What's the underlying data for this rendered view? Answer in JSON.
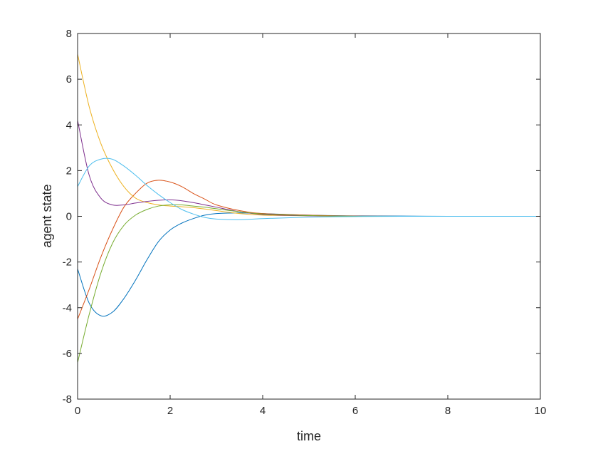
{
  "chart_data": {
    "type": "line",
    "title": "",
    "xlabel": "time",
    "ylabel": "agent state",
    "xlim": [
      0,
      10
    ],
    "ylim": [
      -8,
      8
    ],
    "xticks": [
      0,
      2,
      4,
      6,
      8,
      10
    ],
    "yticks": [
      -8,
      -6,
      -4,
      -2,
      0,
      2,
      4,
      6,
      8
    ],
    "xtick_labels": [
      "0",
      "2",
      "4",
      "6",
      "8",
      "10"
    ],
    "ytick_labels": [
      "-8",
      "-6",
      "-4",
      "-2",
      "0",
      "2",
      "4",
      "6",
      "8"
    ],
    "grid": false,
    "legend": "none",
    "x": [
      0,
      0.25,
      0.5,
      0.75,
      1,
      1.25,
      1.5,
      1.75,
      2,
      2.25,
      2.5,
      2.75,
      3,
      3.5,
      4,
      5,
      6,
      7,
      8,
      9,
      10
    ],
    "series": [
      {
        "color": "#0072BD",
        "values": [
          -2.3,
          -3.8,
          -4.35,
          -4.2,
          -3.6,
          -2.8,
          -1.9,
          -1.1,
          -0.6,
          -0.3,
          -0.1,
          0.05,
          0.12,
          0.15,
          0.12,
          0.05,
          0.02,
          0.01,
          0.0,
          0.0,
          0.0
        ]
      },
      {
        "color": "#D95319",
        "values": [
          -4.5,
          -3.2,
          -1.8,
          -0.6,
          0.4,
          1.0,
          1.45,
          1.58,
          1.5,
          1.3,
          1.0,
          0.75,
          0.5,
          0.25,
          0.12,
          0.05,
          0.01,
          0.0,
          0.0,
          0.0,
          0.0
        ]
      },
      {
        "color": "#EDB120",
        "values": [
          7.1,
          4.8,
          3.2,
          2.1,
          1.3,
          0.8,
          0.6,
          0.5,
          0.45,
          0.42,
          0.38,
          0.32,
          0.25,
          0.12,
          0.05,
          0.02,
          0.0,
          0.0,
          0.0,
          0.0,
          0.0
        ]
      },
      {
        "color": "#7E2F8E",
        "values": [
          4.2,
          1.8,
          0.8,
          0.5,
          0.5,
          0.58,
          0.65,
          0.7,
          0.72,
          0.68,
          0.6,
          0.5,
          0.4,
          0.2,
          0.08,
          0.02,
          0.0,
          0.0,
          0.0,
          0.0,
          0.0
        ]
      },
      {
        "color": "#77AC30",
        "values": [
          -6.4,
          -4.3,
          -2.5,
          -1.2,
          -0.4,
          0.05,
          0.3,
          0.45,
          0.5,
          0.5,
          0.45,
          0.4,
          0.33,
          0.2,
          0.1,
          0.03,
          0.0,
          0.0,
          0.0,
          0.0,
          0.0
        ]
      },
      {
        "color": "#4DBEEE",
        "values": [
          1.3,
          2.2,
          2.5,
          2.5,
          2.2,
          1.8,
          1.35,
          0.95,
          0.6,
          0.3,
          0.1,
          -0.05,
          -0.12,
          -0.15,
          -0.1,
          -0.04,
          -0.01,
          0.0,
          0.0,
          0.0,
          0.0
        ]
      }
    ]
  }
}
